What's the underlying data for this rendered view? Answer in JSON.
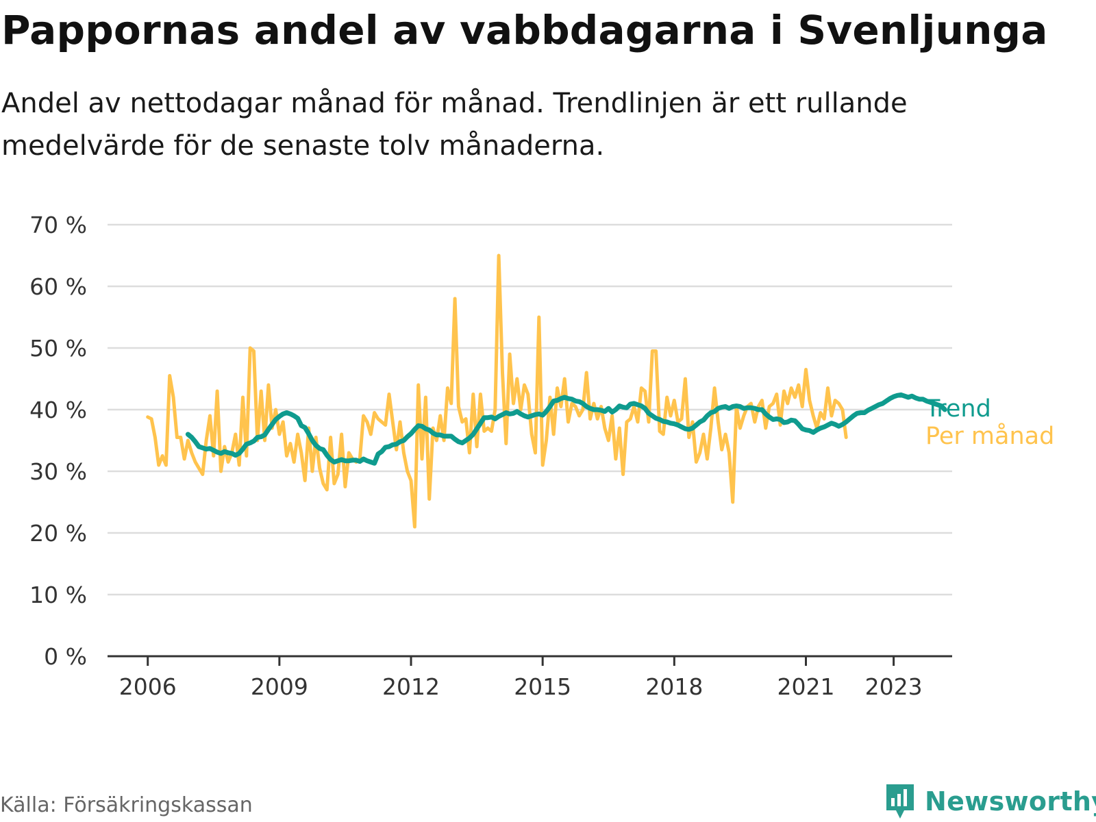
{
  "header": {
    "title": "Pappornas andel av vabbdagarna i Svenljunga",
    "subtitle": "Andel av nettodagar månad för månad. Trendlinjen är ett rullande medelvärde för de senaste tolv månaderna."
  },
  "footer": {
    "source": "Källa: Försäkringskassan",
    "brand": "Newsworthy",
    "brand_icon": "bar-chart-bubble-icon"
  },
  "colors": {
    "trend": "#0f9b8e",
    "monthly": "#ffc34d",
    "grid": "#dddddd",
    "axis": "#333333",
    "brand": "#2a9d8f"
  },
  "chart_data": {
    "type": "line",
    "ylim": [
      0,
      70
    ],
    "y_ticks": [
      {
        "value": 0,
        "label": "0 %"
      },
      {
        "value": 10,
        "label": "10 %"
      },
      {
        "value": 20,
        "label": "20 %"
      },
      {
        "value": 30,
        "label": "30 %"
      },
      {
        "value": 40,
        "label": "40 %"
      },
      {
        "value": 50,
        "label": "50 %"
      },
      {
        "value": 60,
        "label": "60 %"
      },
      {
        "value": 70,
        "label": "70 %"
      }
    ],
    "x_range": [
      "2005-02",
      "2024-05"
    ],
    "x_ticks": [
      {
        "value": "2006-01",
        "label": "2006"
      },
      {
        "value": "2009-01",
        "label": "2009"
      },
      {
        "value": "2012-01",
        "label": "2012"
      },
      {
        "value": "2015-01",
        "label": "2015"
      },
      {
        "value": "2018-01",
        "label": "2018"
      },
      {
        "value": "2021-01",
        "label": "2021"
      },
      {
        "value": "2023-01",
        "label": "2023"
      }
    ],
    "grid": true,
    "series": [
      {
        "name": "Per månad",
        "start": "2006-01",
        "values": [
          38.8,
          38.5,
          35.5,
          31.0,
          32.5,
          31.0,
          45.5,
          42.0,
          35.5,
          35.5,
          32.0,
          35.0,
          33.0,
          31.5,
          30.5,
          29.5,
          35.0,
          39.0,
          32.5,
          43.0,
          30.0,
          34.0,
          31.5,
          33.0,
          36.0,
          31.0,
          42.0,
          32.5,
          50.0,
          49.5,
          35.0,
          43.0,
          35.0,
          44.0,
          37.0,
          40.0,
          36.0,
          38.0,
          32.5,
          34.5,
          31.5,
          36.0,
          33.0,
          28.5,
          37.0,
          30.0,
          35.5,
          30.5,
          28.0,
          27.0,
          35.5,
          28.0,
          29.5,
          36.0,
          27.5,
          33.0,
          32.0,
          31.5,
          32.0,
          39.0,
          38.0,
          36.0,
          39.5,
          38.5,
          38.0,
          37.5,
          42.5,
          38.0,
          33.5,
          38.0,
          33.0,
          30.0,
          28.5,
          21.0,
          44.0,
          32.0,
          42.0,
          25.5,
          37.0,
          35.0,
          39.0,
          35.0,
          43.5,
          41.0,
          58.0,
          40.5,
          38.0,
          38.5,
          33.0,
          42.5,
          34.0,
          42.5,
          36.5,
          37.0,
          36.5,
          40.0,
          65.0,
          46.0,
          34.5,
          49.0,
          41.0,
          45.0,
          40.0,
          44.0,
          42.5,
          36.0,
          33.0,
          55.0,
          31.0,
          35.0,
          42.0,
          36.0,
          43.5,
          40.5,
          45.0,
          38.0,
          41.0,
          40.5,
          39.0,
          40.0,
          46.0,
          38.5,
          41.0,
          38.5,
          40.5,
          37.0,
          35.0,
          39.0,
          32.0,
          37.0,
          29.5,
          38.0,
          38.5,
          40.5,
          38.0,
          43.5,
          43.0,
          38.0,
          49.5,
          49.5,
          36.5,
          36.0,
          42.0,
          39.0,
          41.5,
          38.0,
          38.5,
          45.0,
          35.5,
          38.0,
          31.5,
          33.0,
          36.0,
          32.0,
          37.0,
          43.5,
          38.0,
          33.5,
          36.0,
          33.0,
          25.0,
          40.5,
          37.0,
          39.0,
          40.5,
          41.0,
          38.0,
          40.5,
          41.5,
          37.0,
          40.5,
          41.0,
          42.5,
          37.5,
          43.0,
          41.0,
          43.5,
          42.0,
          44.0,
          40.5,
          46.5,
          41.5,
          39.0,
          37.0,
          39.5,
          38.5,
          43.5,
          39.0,
          41.5,
          41.0,
          40.0,
          35.5
        ]
      },
      {
        "name": "Trend",
        "start": "2006-12",
        "values": [
          36.0,
          35.5,
          34.8,
          34.0,
          33.8,
          33.6,
          33.7,
          33.4,
          33.1,
          32.9,
          33.2,
          33.0,
          32.9,
          32.6,
          32.9,
          33.6,
          34.4,
          34.6,
          34.9,
          35.5,
          35.6,
          35.9,
          36.8,
          37.6,
          38.4,
          38.9,
          39.3,
          39.5,
          39.3,
          39.0,
          38.6,
          37.4,
          37.1,
          36.1,
          35.0,
          34.2,
          33.7,
          33.5,
          32.6,
          31.9,
          31.5,
          31.7,
          31.9,
          31.7,
          31.7,
          31.8,
          31.8,
          31.6,
          32.0,
          31.7,
          31.5,
          31.3,
          32.8,
          33.2,
          33.9,
          34.0,
          34.3,
          34.4,
          34.8,
          35.0,
          35.6,
          36.1,
          36.8,
          37.4,
          37.3,
          36.9,
          36.7,
          36.2,
          35.9,
          35.9,
          35.7,
          35.7,
          35.7,
          35.2,
          34.8,
          34.6,
          35.0,
          35.4,
          36.0,
          36.9,
          37.8,
          38.7,
          38.7,
          38.8,
          38.5,
          38.9,
          39.2,
          39.5,
          39.3,
          39.4,
          39.7,
          39.3,
          39.0,
          38.8,
          39.0,
          39.2,
          39.3,
          39.1,
          39.7,
          40.5,
          41.4,
          41.5,
          41.8,
          42.0,
          41.8,
          41.7,
          41.4,
          41.3,
          41.0,
          40.5,
          40.2,
          40.0,
          40.0,
          39.9,
          39.7,
          40.2,
          39.6,
          40.0,
          40.6,
          40.4,
          40.3,
          40.9,
          41.0,
          40.8,
          40.6,
          40.2,
          39.4,
          39.0,
          38.6,
          38.4,
          38.1,
          38.0,
          37.8,
          37.7,
          37.5,
          37.2,
          36.9,
          36.8,
          37.0,
          37.5,
          38.0,
          38.3,
          39.0,
          39.5,
          39.7,
          40.2,
          40.4,
          40.5,
          40.2,
          40.5,
          40.6,
          40.5,
          40.2,
          40.3,
          40.3,
          40.2,
          40.0,
          40.0,
          39.3,
          38.8,
          38.4,
          38.5,
          38.4,
          37.9,
          38.0,
          38.3,
          38.2,
          37.6,
          36.9,
          36.7,
          36.6,
          36.3,
          36.7,
          37.0,
          37.2,
          37.5,
          37.8,
          37.6,
          37.3,
          37.6,
          38.0,
          38.5,
          39.0,
          39.4,
          39.5,
          39.5,
          39.9,
          40.2,
          40.5,
          40.8,
          41.0,
          41.4,
          41.8,
          42.1,
          42.3,
          42.4,
          42.2,
          42.0,
          42.2,
          41.9,
          41.7,
          41.7,
          41.4,
          41.2,
          41.0,
          40.8,
          40.6,
          40.0
        ]
      }
    ]
  }
}
